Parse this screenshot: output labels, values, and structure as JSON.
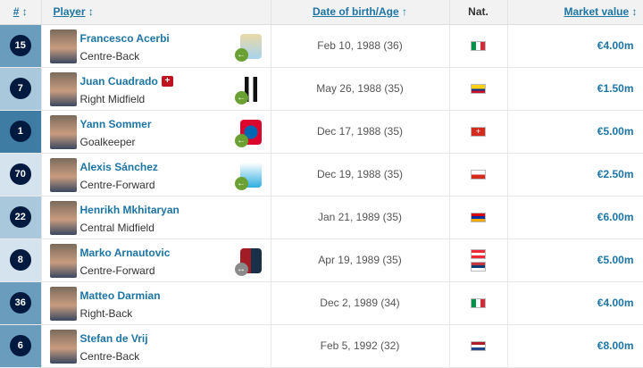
{
  "headers": {
    "num": "#",
    "player": "Player",
    "dob": "Date of birth/Age",
    "nat": "Nat.",
    "mv": "Market value"
  },
  "position_colors": {
    "Goalkeeper": "#3e7ca3",
    "Defender": "#6a9cbe",
    "Midfield": "#a9c8dc",
    "Forward": "#d4e3ed"
  },
  "rows": [
    {
      "num": "15",
      "name": "Francesco Acerbi",
      "pos": "Centre-Back",
      "group": "Defender",
      "club": "lazio-crest",
      "transfer": "joined",
      "dob": "Feb 10, 1988 (36)",
      "flags": [
        "italy"
      ],
      "mv": "€4.00m"
    },
    {
      "num": "7",
      "name": "Juan Cuadrado",
      "pos": "Right Midfield",
      "group": "Midfield",
      "injury": "+",
      "club": "juventus-crest",
      "transfer": "joined",
      "dob": "May 26, 1988 (35)",
      "flags": [
        "colombia"
      ],
      "mv": "€1.50m"
    },
    {
      "num": "1",
      "name": "Yann Sommer",
      "pos": "Goalkeeper",
      "group": "Goalkeeper",
      "club": "bayern-crest",
      "transfer": "joined",
      "dob": "Dec 17, 1988 (35)",
      "flags": [
        "switzerland"
      ],
      "mv": "€5.00m"
    },
    {
      "num": "70",
      "name": "Alexis Sánchez",
      "pos": "Centre-Forward",
      "group": "Forward",
      "club": "marseille-crest",
      "transfer": "joined",
      "dob": "Dec 19, 1988 (35)",
      "flags": [
        "chile"
      ],
      "mv": "€2.50m"
    },
    {
      "num": "22",
      "name": "Henrikh Mkhitaryan",
      "pos": "Central Midfield",
      "group": "Midfield",
      "dob": "Jan 21, 1989 (35)",
      "flags": [
        "armenia"
      ],
      "mv": "€6.00m"
    },
    {
      "num": "8",
      "name": "Marko Arnautovic",
      "pos": "Centre-Forward",
      "group": "Forward",
      "club": "bologna-crest",
      "transfer": "loan",
      "dob": "Apr 19, 1989 (35)",
      "flags": [
        "austria",
        "serbia"
      ],
      "mv": "€5.00m"
    },
    {
      "num": "36",
      "name": "Matteo Darmian",
      "pos": "Right-Back",
      "group": "Defender",
      "dob": "Dec 2, 1989 (34)",
      "flags": [
        "italy"
      ],
      "mv": "€4.00m"
    },
    {
      "num": "6",
      "name": "Stefan de Vrij",
      "pos": "Centre-Back",
      "group": "Defender",
      "dob": "Feb 5, 1992 (32)",
      "flags": [
        "netherlands"
      ],
      "mv": "€8.00m"
    }
  ]
}
